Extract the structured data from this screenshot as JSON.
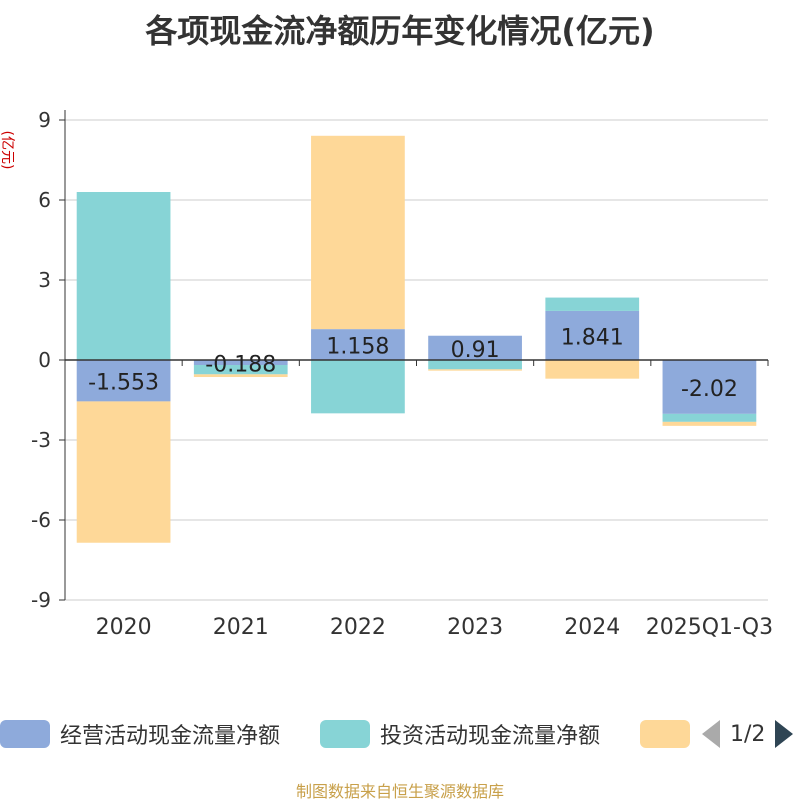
{
  "chart_data": {
    "type": "bar",
    "stacked": true,
    "title": "各项现金流净额历年变化情况(亿元)",
    "ylabel": "(亿元)",
    "ylim": [
      -9,
      9
    ],
    "yticks": [
      9,
      6,
      3,
      0,
      -3,
      -6,
      -9
    ],
    "categories": [
      "2020",
      "2021",
      "2022",
      "2023",
      "2024",
      "2025Q1-Q3"
    ],
    "series": [
      {
        "name": "经营活动现金流量净额",
        "color": "#8eaadb",
        "values": [
          -1.553,
          -0.188,
          1.158,
          0.91,
          1.841,
          -2.02
        ],
        "labels": [
          "-1.553",
          "-0.188",
          "1.158",
          "0.91",
          "1.841",
          "-2.02"
        ]
      },
      {
        "name": "投资活动现金流量净额",
        "color": "#87d4d6",
        "values": [
          6.3,
          -0.35,
          -2.0,
          -0.35,
          0.5,
          -0.3
        ]
      },
      {
        "color": "#fed898",
        "values": [
          -5.3,
          -0.1,
          7.25,
          -0.05,
          -0.7,
          -0.15
        ]
      }
    ],
    "grid": true,
    "legend_position": "bottom"
  },
  "legend": {
    "pager_text": "1/2"
  },
  "footer": {
    "source": "制图数据来自恒生聚源数据库"
  }
}
